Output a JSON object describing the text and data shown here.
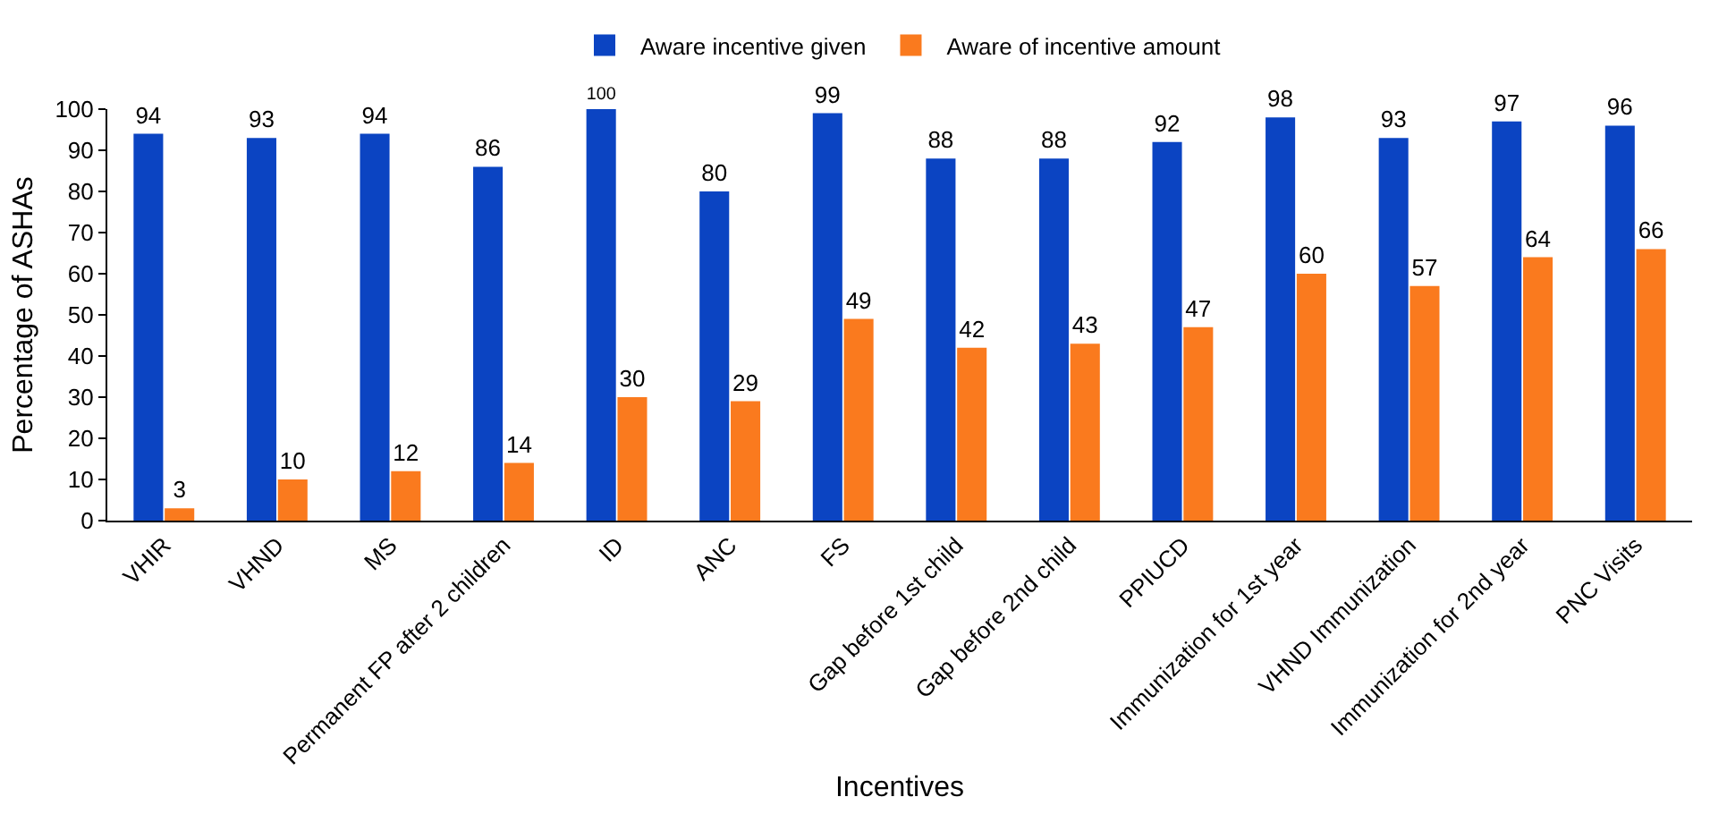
{
  "chart_data": {
    "type": "bar",
    "xlabel": "Incentives",
    "ylabel": "Percentage of ASHAs",
    "categories": [
      "VHIR",
      "VHND",
      "MS",
      "Permanent FP after 2 children",
      "ID",
      "ANC",
      "FS",
      "Gap before 1st child",
      "Gap before 2nd child",
      "PPIUCD",
      "Immunization for 1st year",
      "VHND Immunization",
      "Immunization for 2nd year",
      "PNC Visits"
    ],
    "series": [
      {
        "name": "Aware incentive given",
        "color": "#0b44c2",
        "values": [
          94,
          93,
          94,
          86,
          100,
          80,
          99,
          88,
          88,
          92,
          98,
          93,
          97,
          96
        ]
      },
      {
        "name": "Aware of incentive amount",
        "color": "#fa7a1e",
        "values": [
          3,
          10,
          12,
          14,
          30,
          29,
          49,
          42,
          43,
          47,
          60,
          57,
          64,
          66
        ]
      }
    ],
    "ylim": [
      0,
      100
    ],
    "yticks": [
      0,
      10,
      20,
      30,
      40,
      50,
      60,
      70,
      80,
      90,
      100
    ],
    "grid": false,
    "legend": "top",
    "data_labels": true
  }
}
